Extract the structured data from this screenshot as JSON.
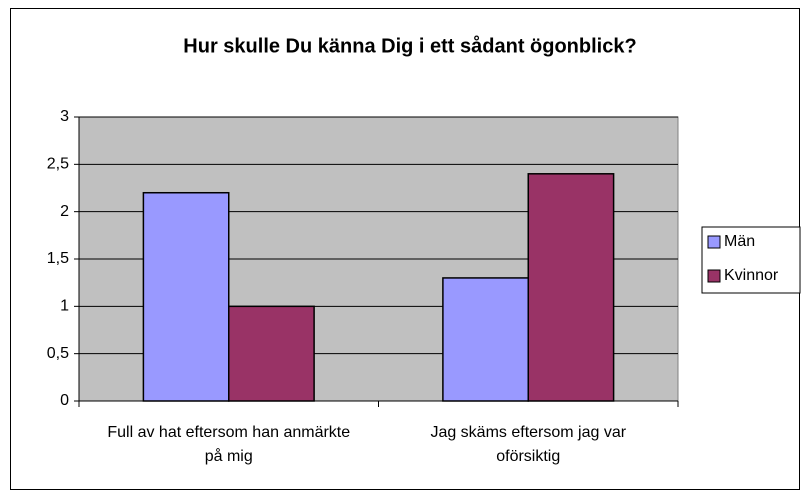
{
  "chart_data": {
    "type": "bar",
    "title": "Hur skulle Du känna Dig i ett sådant ögonblick?",
    "categories": [
      "Full av hat eftersom han anmärkte på mig",
      "Jag skäms eftersom jag var oförsiktig"
    ],
    "series": [
      {
        "name": "Män",
        "color": "#9999ff",
        "values": [
          2.2,
          1.3
        ]
      },
      {
        "name": "Kvinnor",
        "color": "#993366",
        "values": [
          1.0,
          2.4
        ]
      }
    ],
    "ylim": [
      0,
      3
    ],
    "yticks": [
      0,
      {
        "value": 0.5,
        "label": "0,5"
      },
      1,
      {
        "value": 1.5,
        "label": "1,5"
      },
      2,
      {
        "value": 2.5,
        "label": "2,5"
      },
      3
    ],
    "grid": true,
    "plot_background": "#c0c0c0",
    "legend": "right"
  }
}
